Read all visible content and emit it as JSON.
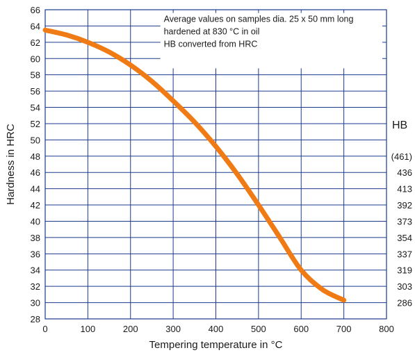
{
  "chart_data": {
    "type": "line",
    "xlabel": "Tempering temperature in °C",
    "ylabel": "Hardness in HRC",
    "xlim": [
      0,
      800
    ],
    "ylim": [
      28,
      66
    ],
    "xticks": [
      0,
      100,
      200,
      300,
      400,
      500,
      600,
      700,
      800
    ],
    "yticks": [
      28,
      30,
      32,
      34,
      36,
      38,
      40,
      42,
      44,
      46,
      48,
      50,
      52,
      54,
      56,
      58,
      60,
      62,
      64,
      66
    ],
    "grid": true,
    "series": [
      {
        "x": [
          0,
          50,
          100,
          150,
          200,
          250,
          300,
          350,
          400,
          450,
          500,
          550,
          600,
          650,
          700
        ],
        "values": [
          63.5,
          62.9,
          62.0,
          60.8,
          59.2,
          57.2,
          54.8,
          52.2,
          49.2,
          45.8,
          42.0,
          38.0,
          34.0,
          31.6,
          30.3
        ],
        "color": "#f07a14"
      }
    ],
    "annotation": [
      "Average values on samples dia. 25 x 50 mm long",
      "hardened at 830 °C in oil",
      "HB converted from HRC"
    ],
    "secondary_axis": {
      "title": "HB",
      "labels": [
        {
          "hrc": 48,
          "label": "(461)"
        },
        {
          "hrc": 46,
          "label": "436"
        },
        {
          "hrc": 44,
          "label": "413"
        },
        {
          "hrc": 42,
          "label": "392"
        },
        {
          "hrc": 40,
          "label": "373"
        },
        {
          "hrc": 38,
          "label": "354"
        },
        {
          "hrc": 36,
          "label": "337"
        },
        {
          "hrc": 34,
          "label": "319"
        },
        {
          "hrc": 32,
          "label": "303"
        },
        {
          "hrc": 30,
          "label": "286"
        }
      ]
    }
  }
}
